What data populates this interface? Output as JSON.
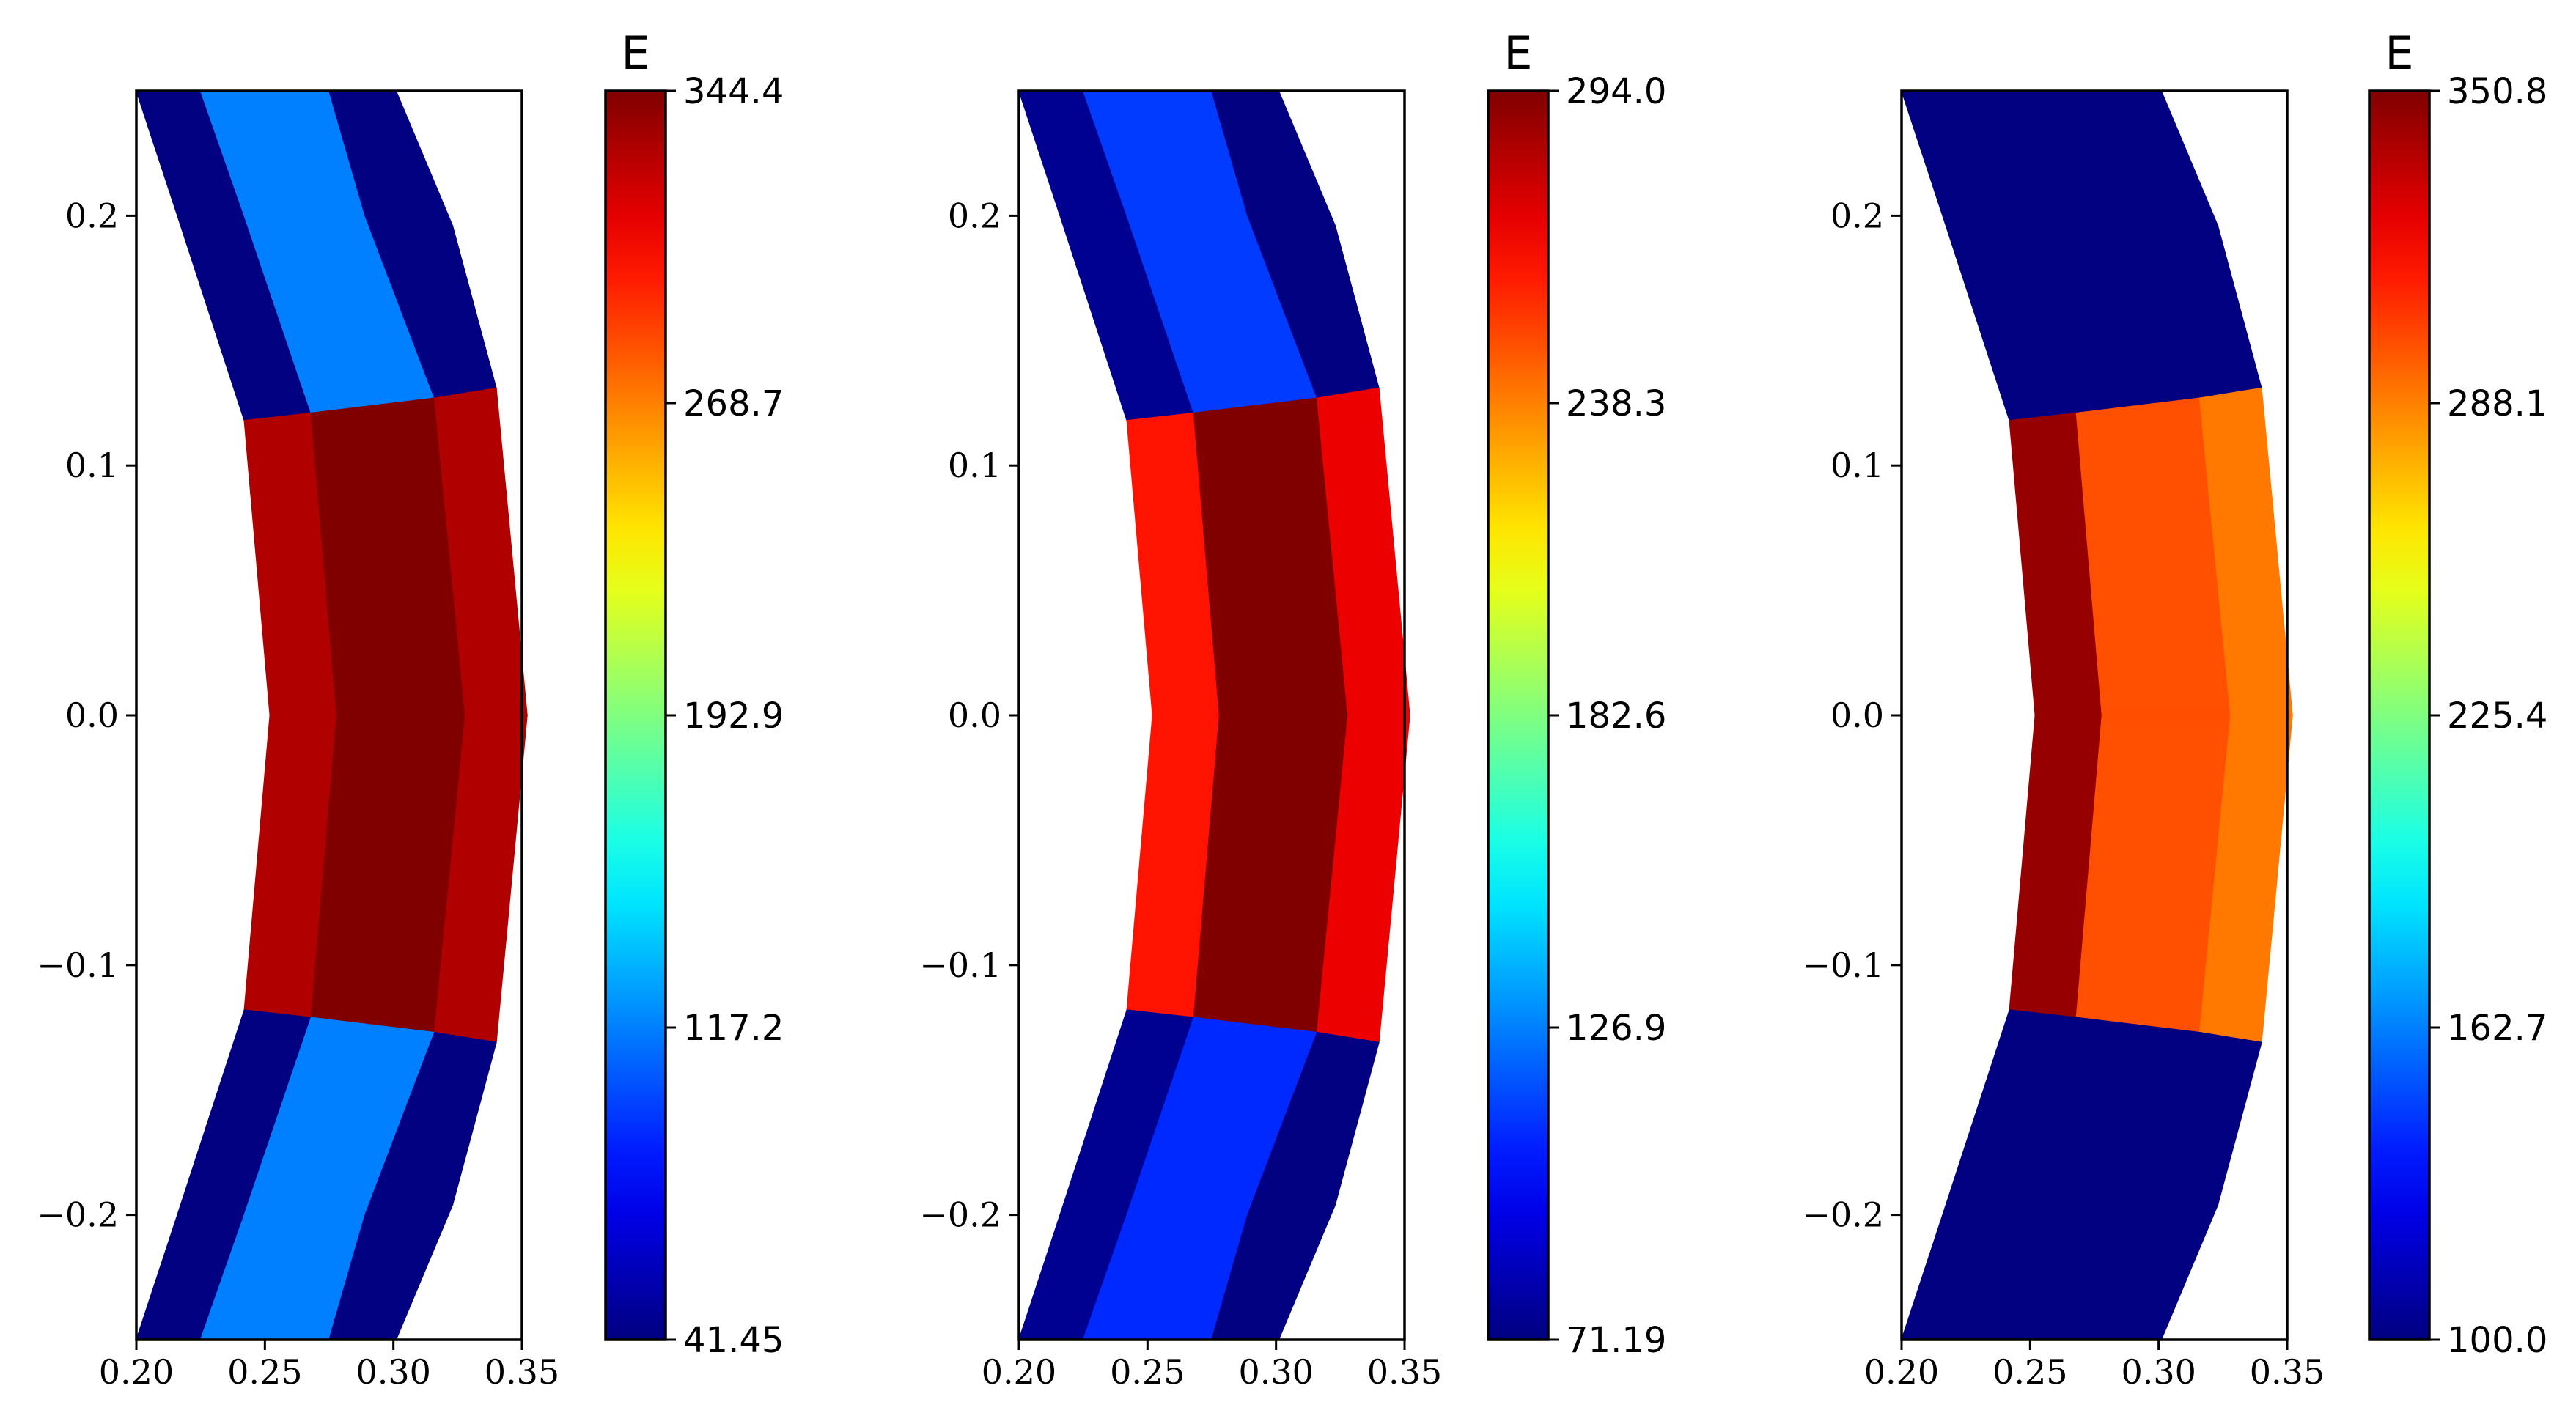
{
  "chart_data": [
    {
      "type": "heatmap",
      "subtype": "mesh-contour",
      "colormap": "jet",
      "colorbar": {
        "title": "E",
        "min": 41.45,
        "max": 344.4,
        "ticks": [
          "41.45",
          "117.2",
          "192.9",
          "268.7",
          "344.4"
        ]
      },
      "xlim": [
        0.2,
        0.35
      ],
      "ylim": [
        -0.25,
        0.25
      ],
      "xticks": [
        "0.20",
        "0.25",
        "0.30",
        "0.35"
      ],
      "yticks": [
        "−0.2",
        "−0.1",
        "0.0",
        "0.1",
        "0.2"
      ],
      "bands": [
        {
          "name": "top",
          "values": [
            41.45,
            117.2,
            41.45
          ]
        },
        {
          "name": "middle",
          "values": [
            330,
            344.4,
            330
          ]
        },
        {
          "name": "bottom",
          "values": [
            41.45,
            117.2,
            41.45
          ]
        }
      ]
    },
    {
      "type": "heatmap",
      "subtype": "mesh-contour",
      "colormap": "jet",
      "colorbar": {
        "title": "E",
        "min": 71.19,
        "max": 294.0,
        "ticks": [
          "71.19",
          "126.9",
          "182.6",
          "238.3",
          "294.0"
        ]
      },
      "xlim": [
        0.2,
        0.35
      ],
      "ylim": [
        -0.25,
        0.25
      ],
      "xticks": [
        "0.20",
        "0.25",
        "0.30",
        "0.35"
      ],
      "yticks": [
        "−0.2",
        "−0.1",
        "0.0",
        "0.1",
        "0.2"
      ],
      "bands": [
        {
          "name": "top",
          "values": [
            75,
            112,
            71.19
          ]
        },
        {
          "name": "middle",
          "values": [
            262,
            294.0,
            270
          ]
        },
        {
          "name": "bottom",
          "values": [
            75,
            108,
            71.19
          ]
        }
      ]
    },
    {
      "type": "heatmap",
      "subtype": "mesh-contour",
      "colormap": "jet",
      "colorbar": {
        "title": "E",
        "min": 100.0,
        "max": 350.8,
        "ticks": [
          "100.0",
          "162.7",
          "225.4",
          "288.1",
          "350.8"
        ]
      },
      "xlim": [
        0.2,
        0.35
      ],
      "ylim": [
        -0.25,
        0.25
      ],
      "xticks": [
        "0.20",
        "0.25",
        "0.30",
        "0.35"
      ],
      "yticks": [
        "−0.2",
        "−0.1",
        "0.0",
        "0.1",
        "0.2"
      ],
      "bands": [
        {
          "name": "top",
          "values": [
            100.0,
            100.0,
            100.0
          ]
        },
        {
          "name": "middle",
          "values": [
            345,
            300,
            290
          ]
        },
        {
          "name": "bottom",
          "values": [
            100.0,
            100.0,
            100.0
          ]
        }
      ]
    }
  ]
}
